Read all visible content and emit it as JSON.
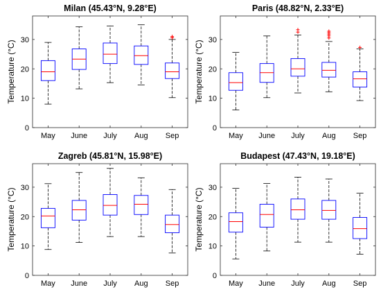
{
  "chart_data": [
    {
      "type": "box",
      "title": "Milan (45.43°N, 9.28°E)",
      "ylabel": "Temperature (°C)",
      "xlabel": "",
      "ylim": [
        0,
        38
      ],
      "yticks": [
        0,
        10,
        20,
        30
      ],
      "categories": [
        "May",
        "June",
        "July",
        "Aug",
        "Sep"
      ],
      "boxes": [
        {
          "whisker_low": 8,
          "q1": 16,
          "median": 19,
          "q3": 22.8,
          "whisker_high": 29,
          "outliers": []
        },
        {
          "whisker_low": 13.2,
          "q1": 19.8,
          "median": 23.3,
          "q3": 26.8,
          "whisker_high": 34.3,
          "outliers": []
        },
        {
          "whisker_low": 15.3,
          "q1": 21.8,
          "median": 25,
          "q3": 28.8,
          "whisker_high": 34.6,
          "outliers": []
        },
        {
          "whisker_low": 14.5,
          "q1": 21.5,
          "median": 24.5,
          "q3": 27.8,
          "whisker_high": 35,
          "outliers": []
        },
        {
          "whisker_low": 10.2,
          "q1": 16.7,
          "median": 19,
          "q3": 22,
          "whisker_high": 30,
          "outliers": [
            30.6,
            31
          ]
        }
      ]
    },
    {
      "type": "box",
      "title": "Paris (48.82°N, 2.33°E)",
      "ylabel": "Temperature (°C)",
      "xlabel": "",
      "ylim": [
        0,
        38
      ],
      "yticks": [
        0,
        10,
        20,
        30
      ],
      "categories": [
        "May",
        "June",
        "July",
        "Aug",
        "Sep"
      ],
      "boxes": [
        {
          "whisker_low": 6,
          "q1": 12.7,
          "median": 15.3,
          "q3": 18.7,
          "whisker_high": 25.6,
          "outliers": []
        },
        {
          "whisker_low": 10.2,
          "q1": 15.4,
          "median": 18.7,
          "q3": 21.8,
          "whisker_high": 31.2,
          "outliers": []
        },
        {
          "whisker_low": 11.8,
          "q1": 17.5,
          "median": 20,
          "q3": 23.5,
          "whisker_high": 31.5,
          "outliers": [
            32.5,
            33.3
          ]
        },
        {
          "whisker_low": 12.2,
          "q1": 17.2,
          "median": 19.5,
          "q3": 22.2,
          "whisker_high": 29.3,
          "outliers": [
            30.5,
            31.2,
            31.8,
            32.3,
            32.8
          ]
        },
        {
          "whisker_low": 9.2,
          "q1": 13.8,
          "median": 16.6,
          "q3": 19,
          "whisker_high": 26.8,
          "outliers": [
            27.3
          ]
        }
      ]
    },
    {
      "type": "box",
      "title": "Zagreb (45.81°N, 15.98°E)",
      "ylabel": "Temperature (°C)",
      "xlabel": "",
      "ylim": [
        0,
        38
      ],
      "yticks": [
        0,
        10,
        20,
        30
      ],
      "categories": [
        "May",
        "June",
        "July",
        "Aug",
        "Sep"
      ],
      "boxes": [
        {
          "whisker_low": 8.8,
          "q1": 16.2,
          "median": 20.2,
          "q3": 22.8,
          "whisker_high": 31.2,
          "outliers": []
        },
        {
          "whisker_low": 11.2,
          "q1": 18.8,
          "median": 22.3,
          "q3": 25.5,
          "whisker_high": 35,
          "outliers": []
        },
        {
          "whisker_low": 13.2,
          "q1": 20.5,
          "median": 23.8,
          "q3": 27.5,
          "whisker_high": 36.4,
          "outliers": []
        },
        {
          "whisker_low": 13.2,
          "q1": 20.7,
          "median": 24.2,
          "q3": 27.2,
          "whisker_high": 33.2,
          "outliers": []
        },
        {
          "whisker_low": 7.6,
          "q1": 14.5,
          "median": 17.3,
          "q3": 20.5,
          "whisker_high": 29.2,
          "outliers": []
        }
      ]
    },
    {
      "type": "box",
      "title": "Budapest (47.43°N, 19.18°E)",
      "ylabel": "Temperature (°C)",
      "xlabel": "",
      "ylim": [
        0,
        38
      ],
      "yticks": [
        0,
        10,
        20,
        30
      ],
      "categories": [
        "May",
        "June",
        "July",
        "Aug",
        "Sep"
      ],
      "boxes": [
        {
          "whisker_low": 5.6,
          "q1": 14.7,
          "median": 18.3,
          "q3": 21.3,
          "whisker_high": 29.6,
          "outliers": []
        },
        {
          "whisker_low": 8.3,
          "q1": 16.4,
          "median": 20.7,
          "q3": 24.2,
          "whisker_high": 31.3,
          "outliers": []
        },
        {
          "whisker_low": 11.3,
          "q1": 19.1,
          "median": 22.3,
          "q3": 26,
          "whisker_high": 33.4,
          "outliers": []
        },
        {
          "whisker_low": 11.3,
          "q1": 19.1,
          "median": 22.1,
          "q3": 25.5,
          "whisker_high": 32.8,
          "outliers": []
        },
        {
          "whisker_low": 7.2,
          "q1": 12.5,
          "median": 15.9,
          "q3": 19.7,
          "whisker_high": 28,
          "outliers": []
        }
      ]
    }
  ]
}
